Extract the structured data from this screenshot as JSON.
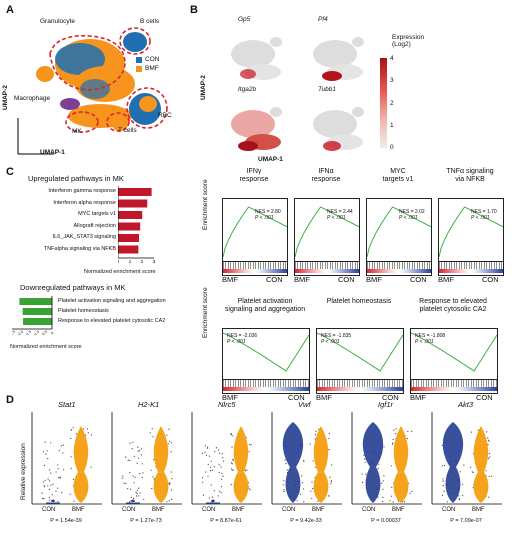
{
  "panels": {
    "A": "A",
    "B": "B",
    "C": "C",
    "D": "D"
  },
  "umap": {
    "xlabel": "UMAP-1",
    "ylabel": "UMAP-2",
    "clusters": {
      "granulocyte": "Granulocyte",
      "bcells": "B cells",
      "macrophage": "Macrophage",
      "mk": "MK",
      "tcells": "T cells",
      "rbc": "RBC"
    },
    "legend": [
      {
        "label": "CON",
        "color": "#1f6fb2"
      },
      {
        "label": "BMF",
        "color": "#f7941d"
      }
    ]
  },
  "expr": {
    "genes": [
      "Gp5",
      "Pf4",
      "Itga2b",
      "Tubb1"
    ],
    "legend_title": "Expression\n(Log2)",
    "legend_ticks": [
      "4",
      "3",
      "2",
      "1",
      "0"
    ],
    "xlabel": "UMAP-1",
    "ylabel": "UMAP-2"
  },
  "pathways": {
    "up_title": "Upregulated pathways in MK",
    "down_title": "Downregulated pathways in MK",
    "xlabel": "Normalized enrichment score",
    "up": [
      {
        "name": "Interferon gamma response",
        "nes": 2.8
      },
      {
        "name": "Interferon alpha response",
        "nes": 2.44
      },
      {
        "name": "MYC targets v1",
        "nes": 2.02
      },
      {
        "name": "Allograft rejection",
        "nes": 1.85
      },
      {
        "name": "IL6_JAK_STAT3 signaling",
        "nes": 1.75
      },
      {
        "name": "TNFalpha signaling via NFKB",
        "nes": 1.7
      }
    ],
    "down": [
      {
        "name": "Platelet activation signaling and aggregation",
        "nes": -2.036
      },
      {
        "name": "Platelet homeostasis",
        "nes": -1.835
      },
      {
        "name": "Response to elevated platelet cytosolic CA2",
        "nes": -1.808
      }
    ],
    "up_axis": [
      "0",
      "1",
      "2",
      "3"
    ],
    "down_axis": [
      "-2.5",
      "-2.0",
      "-1.5",
      "-1.0",
      "-0.5",
      "0"
    ],
    "up_color": "#c0182a",
    "down_color": "#3aa335"
  },
  "gsea": {
    "ylabel": "Enrichment score",
    "left": "BMF",
    "right": "CON",
    "top": [
      {
        "title": "IFNγ\nresponse",
        "nes": "NES = 2.80",
        "p": "P < .001"
      },
      {
        "title": "IFNα\nresponse",
        "nes": "NES = 2.44",
        "p": "P < .001"
      },
      {
        "title": "MYC\ntargets v1",
        "nes": "NES = 2.02",
        "p": "P < .001"
      },
      {
        "title": "TNFα signaling\nvia NFKB",
        "nes": "NES = 1.70",
        "p": "P < .001"
      }
    ],
    "bottom": [
      {
        "title": "Platelet activation\nsignaling and aggregation",
        "nes": "NES = -2.036",
        "p": "P < .001"
      },
      {
        "title": "Platelet homeostasis",
        "nes": "NES = -1.835",
        "p": "P < .001"
      },
      {
        "title": "Response to elevated\nplatelet cytosolic CA2",
        "nes": "NES = -1.808",
        "p": "P < .001"
      }
    ],
    "top_ticks": [
      "0.7",
      "0.6",
      "0.5",
      "0.4",
      "0.3",
      "0.2",
      "0.1",
      "0"
    ],
    "bottom_ticks": [
      "0",
      "-0.1",
      "-0.2",
      "-0.3",
      "-0.4"
    ]
  },
  "violin": {
    "ylabel": "Relative expression",
    "groups": [
      "CON",
      "BMF"
    ],
    "genes": [
      {
        "name": "Stat1",
        "p": "P = 1.54e-39"
      },
      {
        "name": "H2-K1",
        "p": "P = 1.27e-73"
      },
      {
        "name": "Nlrc5",
        "p": "P = 8.87e-61"
      },
      {
        "name": "Vwf",
        "p": "P = 9.42e-33"
      },
      {
        "name": "Igf1r",
        "p": "P = 0.00037"
      },
      {
        "name": "Akt3",
        "p": "P = 7.09e-07"
      }
    ],
    "con_color": "#233d8f",
    "bmf_color": "#f7a21b"
  }
}
